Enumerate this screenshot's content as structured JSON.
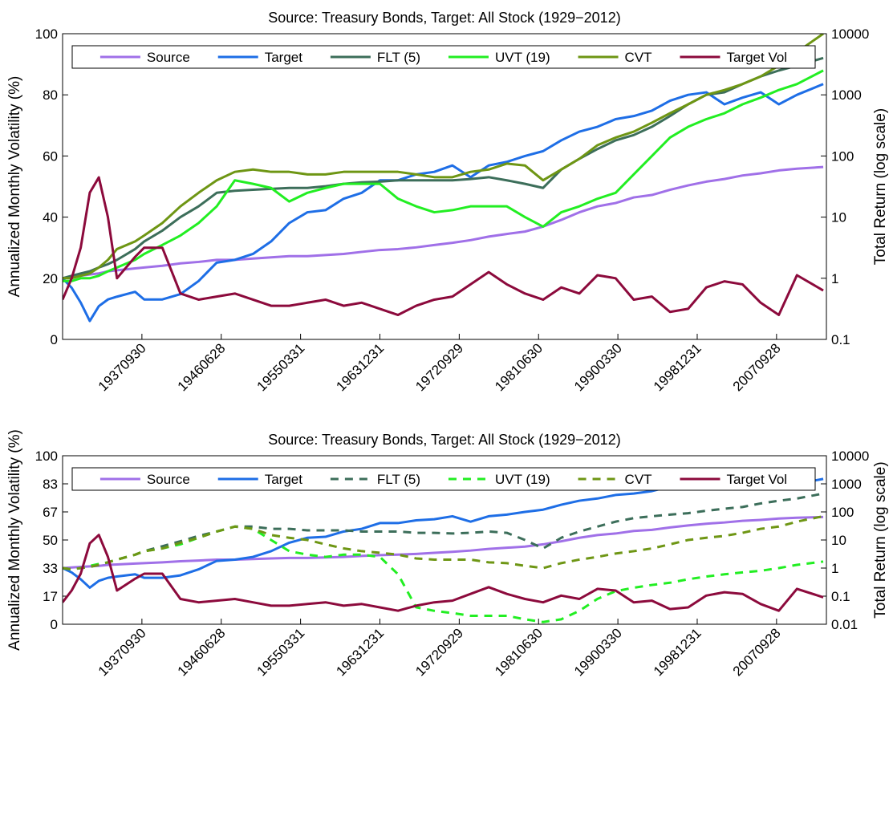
{
  "chart_data": [
    {
      "type": "line",
      "title": "Source: Treasury Bonds, Target: All Stock (1929−2012)",
      "ylabel": "Annualized Monthly Volatility (%)",
      "y2label": "Total Return (log scale)",
      "yaxis_color": "#a0285a",
      "xlim": [
        1929,
        2013.25
      ],
      "ylim": [
        0,
        100
      ],
      "y2lim": [
        0.1,
        10000
      ],
      "y2log": true,
      "legend": "top",
      "xticks": [
        {
          "value": 1937.75,
          "label": "19370930"
        },
        {
          "value": 1946.5,
          "label": "19460628"
        },
        {
          "value": 1955.25,
          "label": "19550331"
        },
        {
          "value": 1964.0,
          "label": "19631231"
        },
        {
          "value": 1972.75,
          "label": "19720929"
        },
        {
          "value": 1981.5,
          "label": "19810630"
        },
        {
          "value": 1990.25,
          "label": "19900330"
        },
        {
          "value": 1999.0,
          "label": "19981231"
        },
        {
          "value": 2007.75,
          "label": "20070928"
        }
      ],
      "yticks": [
        0,
        20,
        40,
        60,
        80,
        100
      ],
      "y2ticks": [
        0.1,
        1,
        10,
        100,
        1000,
        10000
      ],
      "x": [
        1929,
        1930,
        1931,
        1932,
        1933,
        1934,
        1935,
        1937,
        1938,
        1940,
        1942,
        1944,
        1946,
        1948,
        1950,
        1952,
        1954,
        1956,
        1958,
        1960,
        1962,
        1964,
        1966,
        1968,
        1970,
        1972,
        1974,
        1976,
        1978,
        1980,
        1982,
        1984,
        1986,
        1988,
        1990,
        1992,
        1994,
        1996,
        1998,
        2000,
        2002,
        2004,
        2006,
        2008,
        2010,
        2012.9
      ],
      "series": [
        {
          "name": "Source",
          "color": "#a070e8",
          "axis": "y2",
          "dash": false,
          "values": [
            1,
            1.05,
            1.1,
            1.15,
            1.2,
            1.3,
            1.35,
            1.45,
            1.5,
            1.6,
            1.75,
            1.85,
            2.0,
            2.0,
            2.1,
            2.2,
            2.3,
            2.3,
            2.4,
            2.5,
            2.7,
            2.9,
            3.0,
            3.2,
            3.5,
            3.8,
            4.2,
            4.8,
            5.3,
            5.8,
            7,
            9,
            12,
            15,
            17,
            21,
            23,
            28,
            33,
            38,
            42,
            48,
            52,
            58,
            62,
            66
          ]
        },
        {
          "name": "Target",
          "color": "#1e6ee6",
          "axis": "y2",
          "dash": false,
          "values": [
            1,
            0.7,
            0.4,
            0.2,
            0.35,
            0.45,
            0.5,
            0.6,
            0.45,
            0.45,
            0.55,
            0.9,
            1.8,
            2.0,
            2.5,
            4,
            8,
            12,
            13,
            20,
            25,
            40,
            40,
            50,
            55,
            70,
            45,
            70,
            80,
            100,
            120,
            180,
            250,
            300,
            400,
            450,
            550,
            800,
            1000,
            1100,
            700,
            900,
            1100,
            700,
            1000,
            1500
          ]
        },
        {
          "name": "FLT (5)",
          "color": "#3c6e5a",
          "axis": "y2",
          "dash": false,
          "values": [
            1,
            1.1,
            1.2,
            1.3,
            1.5,
            1.7,
            2,
            3,
            4,
            6,
            10,
            15,
            25,
            27,
            28,
            29,
            30,
            30,
            32,
            35,
            37,
            38,
            40,
            40,
            40,
            40,
            42,
            45,
            40,
            35,
            30,
            60,
            90,
            130,
            180,
            220,
            300,
            450,
            700,
            1000,
            1100,
            1500,
            2000,
            2500,
            3000,
            4000
          ]
        },
        {
          "name": "UVT (19)",
          "color": "#22ee22",
          "axis": "y2",
          "dash": false,
          "values": [
            0.9,
            0.9,
            1,
            1,
            1.1,
            1.3,
            1.5,
            2,
            2.5,
            3.5,
            5,
            8,
            15,
            40,
            35,
            30,
            18,
            25,
            30,
            35,
            35,
            35,
            20,
            15,
            12,
            13,
            15,
            15,
            15,
            10,
            7,
            12,
            15,
            20,
            25,
            50,
            100,
            200,
            300,
            400,
            500,
            700,
            900,
            1200,
            1500,
            2500
          ]
        },
        {
          "name": "CVT",
          "color": "#6e9614",
          "axis": "y2",
          "dash": false,
          "values": [
            1,
            1,
            1.1,
            1.2,
            1.5,
            2,
            3,
            4,
            5,
            8,
            15,
            25,
            40,
            55,
            60,
            55,
            55,
            50,
            50,
            55,
            55,
            55,
            55,
            50,
            45,
            45,
            55,
            60,
            75,
            70,
            40,
            60,
            90,
            150,
            200,
            250,
            350,
            500,
            700,
            1000,
            1200,
            1500,
            2000,
            3000,
            5000,
            10000
          ]
        },
        {
          "name": "Target Vol",
          "color": "#8c0a3c",
          "axis": "y",
          "dash": false,
          "values": [
            13,
            20,
            30,
            48,
            53,
            40,
            20,
            27,
            30,
            30,
            15,
            13,
            14,
            15,
            13,
            11,
            11,
            12,
            13,
            11,
            12,
            10,
            8,
            11,
            13,
            14,
            18,
            22,
            18,
            15,
            13,
            17,
            15,
            21,
            20,
            13,
            14,
            9,
            10,
            17,
            19,
            18,
            12,
            8,
            21,
            16
          ]
        }
      ]
    },
    {
      "type": "line",
      "title": "Source: Treasury Bonds, Target: All Stock (1929−2012)",
      "ylabel": "Annualized Monthly Volatility (%)",
      "y2label": "Total Return (log scale)",
      "yaxis_color": "#a0285a",
      "xlim": [
        1929,
        2013.25
      ],
      "ylim": [
        0,
        100
      ],
      "y2lim": [
        0.01,
        10000
      ],
      "y2log": true,
      "legend": "top",
      "xticks": [
        {
          "value": 1937.75,
          "label": "19370930"
        },
        {
          "value": 1946.5,
          "label": "19460628"
        },
        {
          "value": 1955.25,
          "label": "19550331"
        },
        {
          "value": 1964.0,
          "label": "19631231"
        },
        {
          "value": 1972.75,
          "label": "19720929"
        },
        {
          "value": 1981.5,
          "label": "19810630"
        },
        {
          "value": 1990.25,
          "label": "19900330"
        },
        {
          "value": 1999.0,
          "label": "19981231"
        },
        {
          "value": 2007.75,
          "label": "20070928"
        }
      ],
      "yticks": [
        0,
        {
          "value": 16.67,
          "label": "17"
        },
        {
          "value": 33.33,
          "label": "33"
        },
        50,
        {
          "value": 66.67,
          "label": "67"
        },
        {
          "value": 83.33,
          "label": "83"
        },
        100
      ],
      "y2ticks": [
        0.01,
        0.1,
        1,
        10,
        100,
        1000,
        10000
      ],
      "x": [
        1929,
        1930,
        1931,
        1932,
        1933,
        1934,
        1935,
        1937,
        1938,
        1940,
        1942,
        1944,
        1946,
        1948,
        1950,
        1952,
        1954,
        1956,
        1958,
        1960,
        1962,
        1964,
        1966,
        1968,
        1970,
        1972,
        1974,
        1976,
        1978,
        1980,
        1982,
        1984,
        1986,
        1988,
        1990,
        1992,
        1994,
        1996,
        1998,
        2000,
        2002,
        2004,
        2006,
        2008,
        2010,
        2012.9
      ],
      "series": [
        {
          "name": "Source",
          "color": "#a070e8",
          "axis": "y2",
          "dash": false,
          "values": [
            1,
            1.05,
            1.1,
            1.15,
            1.2,
            1.3,
            1.35,
            1.45,
            1.5,
            1.6,
            1.75,
            1.85,
            2.0,
            2.0,
            2.1,
            2.2,
            2.3,
            2.3,
            2.4,
            2.5,
            2.7,
            2.9,
            3.0,
            3.2,
            3.5,
            3.8,
            4.2,
            4.8,
            5.3,
            5.8,
            7,
            9,
            12,
            15,
            17,
            21,
            23,
            28,
            33,
            38,
            42,
            48,
            52,
            58,
            62,
            66
          ]
        },
        {
          "name": "Target",
          "color": "#1e6ee6",
          "axis": "y2",
          "dash": false,
          "values": [
            1,
            0.7,
            0.4,
            0.2,
            0.35,
            0.45,
            0.5,
            0.6,
            0.45,
            0.45,
            0.55,
            0.9,
            1.8,
            2.0,
            2.5,
            4,
            8,
            12,
            13,
            20,
            25,
            40,
            40,
            50,
            55,
            70,
            45,
            70,
            80,
            100,
            120,
            180,
            250,
            300,
            400,
            450,
            550,
            800,
            1000,
            1100,
            700,
            900,
            1100,
            700,
            1000,
            1500
          ]
        },
        {
          "name": "FLT (5)",
          "color": "#3c6e5a",
          "axis": "y2",
          "dash": true,
          "values": [
            1,
            0.9,
            1,
            1.1,
            1.3,
            1.6,
            2,
            3,
            4,
            6,
            9,
            14,
            20,
            30,
            30,
            25,
            25,
            22,
            22,
            22,
            20,
            20,
            20,
            18,
            18,
            17,
            18,
            20,
            18,
            10,
            5,
            12,
            20,
            30,
            45,
            60,
            70,
            80,
            90,
            110,
            130,
            150,
            200,
            250,
            300,
            450
          ]
        },
        {
          "name": "UVT (19)",
          "color": "#22ee22",
          "axis": "y2",
          "dash": true,
          "values": [
            1,
            0.9,
            1,
            1.2,
            1.4,
            1.6,
            2,
            3,
            4,
            5,
            7,
            12,
            20,
            30,
            25,
            10,
            4,
            3,
            2.5,
            3,
            3,
            2.5,
            0.6,
            0.04,
            0.03,
            0.025,
            0.02,
            0.02,
            0.02,
            0.015,
            0.012,
            0.015,
            0.03,
            0.08,
            0.15,
            0.2,
            0.25,
            0.3,
            0.4,
            0.5,
            0.6,
            0.7,
            0.8,
            1.0,
            1.3,
            1.7
          ]
        },
        {
          "name": "CVT",
          "color": "#6e9614",
          "axis": "y2",
          "dash": true,
          "values": [
            1,
            0.9,
            1,
            1.1,
            1.3,
            1.6,
            2,
            3,
            4,
            5,
            8,
            12,
            20,
            30,
            25,
            15,
            12,
            10,
            7,
            5,
            4,
            3.5,
            3,
            2.2,
            2,
            2,
            2,
            1.6,
            1.5,
            1.2,
            1,
            1.5,
            2,
            2.5,
            3.3,
            4,
            5,
            7,
            10,
            12,
            14,
            18,
            25,
            30,
            45,
            70
          ]
        },
        {
          "name": "Target Vol",
          "color": "#8c0a3c",
          "axis": "y",
          "dash": false,
          "values": [
            13,
            20,
            30,
            48,
            53,
            40,
            20,
            27,
            30,
            30,
            15,
            13,
            14,
            15,
            13,
            11,
            11,
            12,
            13,
            11,
            12,
            10,
            8,
            11,
            13,
            14,
            18,
            22,
            18,
            15,
            13,
            17,
            15,
            21,
            20,
            13,
            14,
            9,
            10,
            17,
            19,
            18,
            12,
            8,
            21,
            16
          ]
        }
      ]
    }
  ]
}
